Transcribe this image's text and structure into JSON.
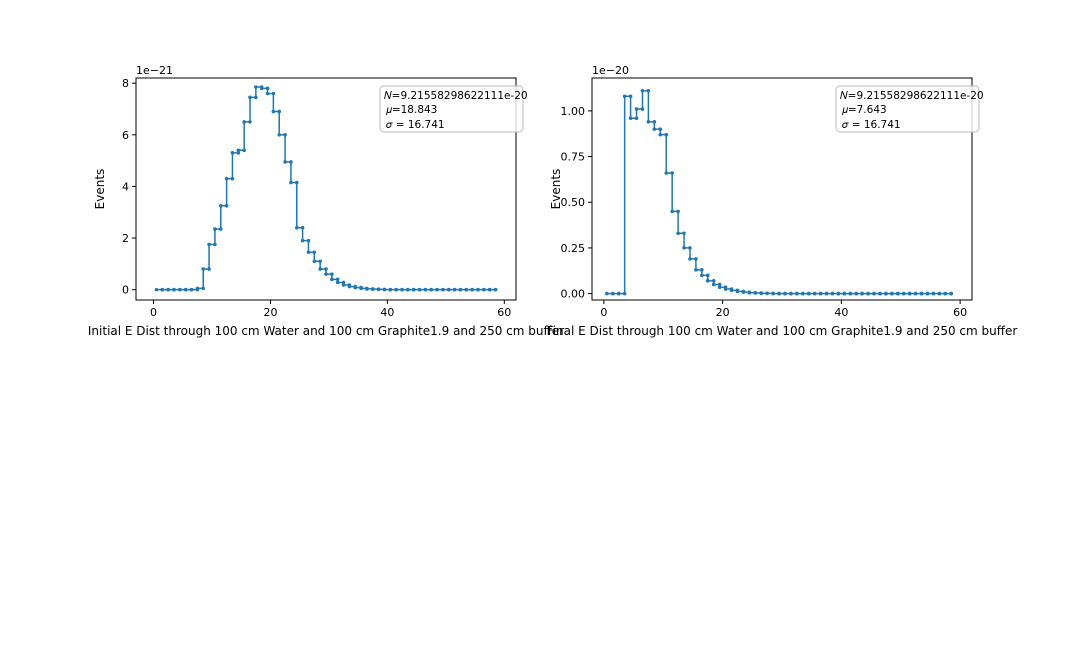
{
  "colors": {
    "series": "#1f77b4",
    "axes": "#000000",
    "legend_border": "#bbbbbb"
  },
  "chart_data": [
    {
      "type": "line",
      "style": "step-with-markers",
      "xlabel": "Initial E Dist through 100 cm Water and 100 cm Graphite1.9 and 250 cm buffer",
      "ylabel": "Events",
      "offset_text": "1e−21",
      "xlim": [
        -3,
        62
      ],
      "ylim": [
        -0.4,
        8.2
      ],
      "x_ticks": [
        0,
        20,
        40,
        60
      ],
      "x_tick_labels": [
        "0",
        "20",
        "40",
        "60"
      ],
      "y_ticks": [
        0,
        2,
        4,
        6,
        8
      ],
      "y_tick_labels": [
        "0",
        "2",
        "4",
        "6",
        "8"
      ],
      "legend": {
        "placement": "top-right",
        "N": "𝑁=9.21558298622111e-20",
        "mu": "𝜇=18.843",
        "sigma": "𝜎 = 16.741"
      },
      "series": [
        {
          "name": "initial",
          "x": [
            0.5,
            1.5,
            2.5,
            3.5,
            4.5,
            5.5,
            6.5,
            7.5,
            8.5,
            9.5,
            10.5,
            11.5,
            12.5,
            13.5,
            14.5,
            15.5,
            16.5,
            17.5,
            18.5,
            19.5,
            20.5,
            21.5,
            22.5,
            23.5,
            24.5,
            25.5,
            26.5,
            27.5,
            28.5,
            29.5,
            30.5,
            31.5,
            32.5,
            33.5,
            34.5,
            35.5,
            36.5,
            37.5,
            38.5,
            39.5,
            40.5,
            41.5,
            42.5,
            43.5,
            44.5,
            45.5,
            46.5,
            47.5,
            48.5,
            49.5,
            50.5,
            51.5,
            52.5,
            53.5,
            54.5,
            55.5,
            56.5,
            57.5,
            58.5
          ],
          "values": [
            0,
            0,
            0,
            0,
            0,
            0,
            0,
            0.05,
            0.8,
            1.75,
            2.35,
            3.25,
            4.3,
            5.3,
            5.4,
            6.5,
            7.45,
            7.85,
            7.8,
            7.6,
            6.9,
            6.0,
            4.95,
            4.15,
            2.4,
            1.9,
            1.45,
            1.1,
            0.8,
            0.6,
            0.4,
            0.28,
            0.18,
            0.12,
            0.08,
            0.05,
            0.03,
            0.02,
            0.01,
            0,
            0,
            0,
            0,
            0,
            0,
            0,
            0,
            0,
            0,
            0,
            0,
            0,
            0,
            0,
            0,
            0,
            0,
            0,
            0
          ]
        }
      ]
    },
    {
      "type": "line",
      "style": "step-with-markers",
      "xlabel": "Final E Dist through 100 cm Water and 100 cm Graphite1.9 and 250 cm buffer",
      "ylabel": "Events",
      "offset_text": "1e−20",
      "xlim": [
        -2,
        62
      ],
      "ylim": [
        -0.035,
        1.18
      ],
      "x_ticks": [
        0,
        20,
        40,
        60
      ],
      "x_tick_labels": [
        "0",
        "20",
        "40",
        "60"
      ],
      "y_ticks": [
        0,
        0.25,
        0.5,
        0.75,
        1.0
      ],
      "y_tick_labels": [
        "0.00",
        "0.25",
        "0.50",
        "0.75",
        "1.00"
      ],
      "legend": {
        "placement": "top-right",
        "N": "𝑁=9.21558298622111e-20",
        "mu": "𝜇=7.643",
        "sigma": "𝜎 = 16.741"
      },
      "series": [
        {
          "name": "final",
          "x": [
            0.5,
            1.5,
            2.5,
            3.5,
            4.5,
            5.5,
            6.5,
            7.5,
            8.5,
            9.5,
            10.5,
            11.5,
            12.5,
            13.5,
            14.5,
            15.5,
            16.5,
            17.5,
            18.5,
            19.5,
            20.5,
            21.5,
            22.5,
            23.5,
            24.5,
            25.5,
            26.5,
            27.5,
            28.5,
            29.5,
            30.5,
            31.5,
            32.5,
            33.5,
            34.5,
            35.5,
            36.5,
            37.5,
            38.5,
            39.5,
            40.5,
            41.5,
            42.5,
            43.5,
            44.5,
            45.5,
            46.5,
            47.5,
            48.5,
            49.5,
            50.5,
            51.5,
            52.5,
            53.5,
            54.5,
            55.5,
            56.5,
            57.5,
            58.5
          ],
          "values": [
            0,
            0,
            0,
            1.08,
            0.96,
            1.01,
            1.11,
            0.94,
            0.9,
            0.87,
            0.66,
            0.45,
            0.33,
            0.25,
            0.19,
            0.13,
            0.1,
            0.07,
            0.05,
            0.035,
            0.025,
            0.018,
            0.012,
            0.008,
            0.005,
            0.003,
            0.002,
            0.001,
            0,
            0,
            0,
            0,
            0,
            0,
            0,
            0,
            0,
            0,
            0,
            0,
            0,
            0,
            0,
            0,
            0,
            0,
            0,
            0,
            0,
            0,
            0,
            0,
            0,
            0,
            0,
            0,
            0,
            0,
            0
          ]
        }
      ]
    }
  ]
}
